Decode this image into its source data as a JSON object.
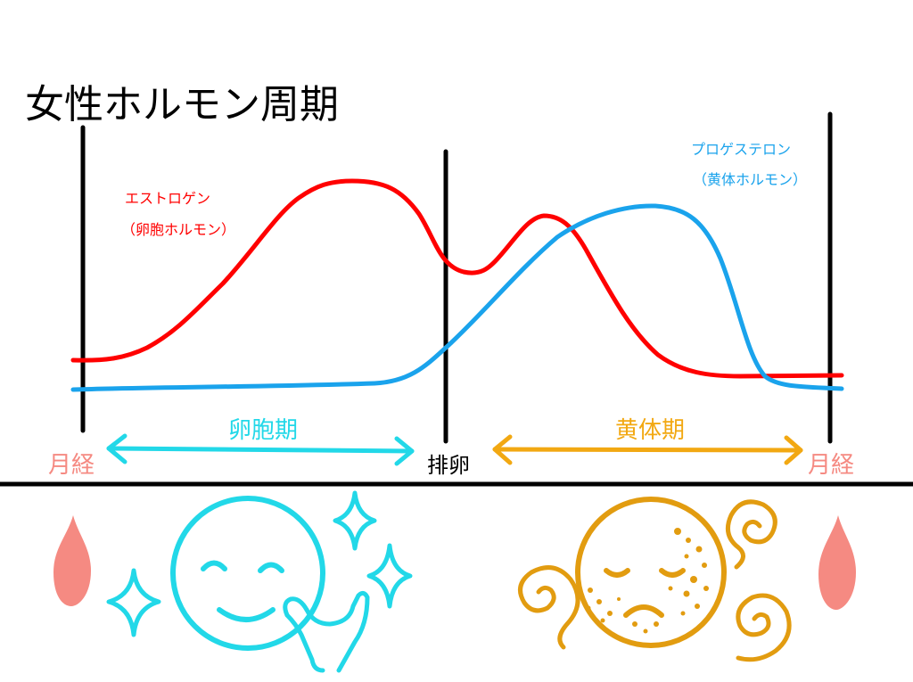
{
  "title": "女性ホルモン周期",
  "estrogen": {
    "name": "エストロゲン",
    "subname": "（卵胞ホルモン）",
    "color": "#ff0000"
  },
  "progesterone": {
    "name": "プロゲステロン",
    "subname": "（黄体ホルモン）",
    "color": "#1aa3ec"
  },
  "phases": {
    "menstruation_left": "月経",
    "follicular": "卵胞期",
    "ovulation": "排卵",
    "luteal": "黄体期",
    "menstruation_right": "月経"
  },
  "colors": {
    "menstruation": "#f58a82",
    "follicular": "#22d8e8",
    "luteal": "#f2a812",
    "luteal_face": "#e29c10",
    "line": "#000000"
  },
  "icons": {
    "blood_drop_left": "blood-drop-icon",
    "happy_face": "smiling-face-icon",
    "sparkles": "sparkle-icon",
    "hand": "hand-icon",
    "sad_face": "sad-face-icon",
    "swirls": "swirl-icon",
    "blood_drop_right": "blood-drop-icon"
  }
}
